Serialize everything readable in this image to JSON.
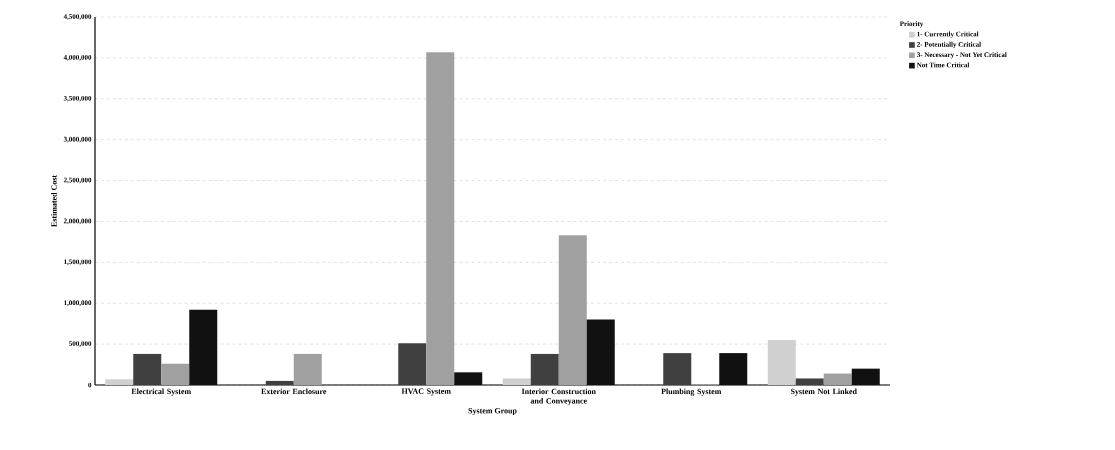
{
  "chart_data": {
    "type": "bar",
    "xlabel": "System Group",
    "ylabel": "Estimated Cost",
    "legend_title": "Priority",
    "categories": [
      "Electrical System",
      "Exterior Enclosure",
      "HVAC System",
      "Interior Construction and Conveyance",
      "Plumbing System",
      "System Not Linked"
    ],
    "series": [
      {
        "name": "1- Currently Critical",
        "color": "#d0d0d0",
        "values": [
          70000,
          0,
          0,
          80000,
          0,
          550000
        ]
      },
      {
        "name": "2- Potentially Critical",
        "color": "#404040",
        "values": [
          380000,
          50000,
          510000,
          380000,
          390000,
          80000
        ]
      },
      {
        "name": "3- Necessary - Not Yet Critical",
        "color": "#a0a0a0",
        "values": [
          260000,
          380000,
          4070000,
          1830000,
          10000,
          140000
        ]
      },
      {
        "name": "Not Time Critical",
        "color": "#111111",
        "values": [
          920000,
          0,
          155000,
          800000,
          390000,
          200000
        ]
      }
    ],
    "ylim": [
      0,
      4500000
    ],
    "yticks": [
      {
        "value": 0,
        "label": "0"
      },
      {
        "value": 500000,
        "label": "500,000"
      },
      {
        "value": 1000000,
        "label": "1,000,000"
      },
      {
        "value": 1500000,
        "label": "1,500,000"
      },
      {
        "value": 2000000,
        "label": "2,000,000"
      },
      {
        "value": 2500000,
        "label": "2,500,000"
      },
      {
        "value": 3000000,
        "label": "3,000,000"
      },
      {
        "value": 3500000,
        "label": "3,500,000"
      },
      {
        "value": 4000000,
        "label": "4,000,000"
      },
      {
        "value": 4500000,
        "label": "4,500,000"
      }
    ],
    "grid": "y",
    "legend": "top right"
  }
}
